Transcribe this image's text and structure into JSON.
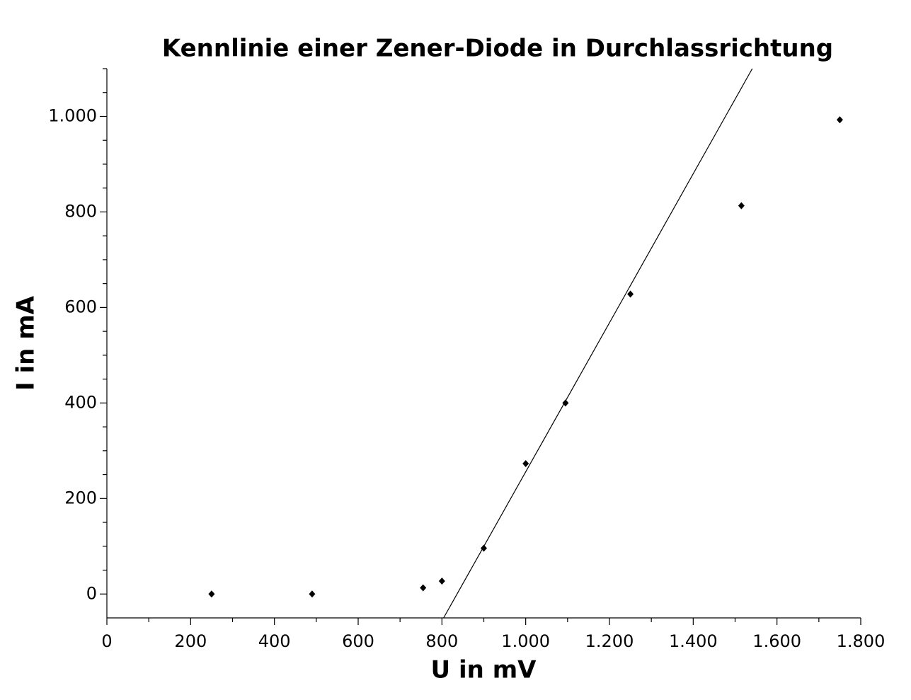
{
  "chart_data": {
    "type": "scatter",
    "title": "Kennlinie einer Zener-Diode in Durchlassrichtung",
    "xlabel": "U in mV",
    "ylabel": "I in mA",
    "xlim": [
      0,
      1800
    ],
    "ylim": [
      -50,
      1100
    ],
    "xticks": [
      0,
      200,
      400,
      600,
      800,
      {
        "value": 1000,
        "label": "1.000"
      },
      {
        "value": 1200,
        "label": "1.200"
      },
      {
        "value": 1400,
        "label": "1.400"
      },
      {
        "value": 1600,
        "label": "1.600"
      },
      {
        "value": 1800,
        "label": "1.800"
      }
    ],
    "yticks": [
      0,
      200,
      400,
      600,
      800,
      {
        "value": 1000,
        "label": "1.000"
      }
    ],
    "xminorticks": [
      100,
      300,
      500,
      700,
      900,
      1100,
      1300,
      1500,
      1700
    ],
    "yminorticks": [
      50,
      100,
      150,
      250,
      300,
      350,
      450,
      500,
      550,
      650,
      700,
      750,
      850,
      900,
      950,
      1050,
      1100
    ],
    "series": [
      {
        "type": "scatter",
        "color": "#000000",
        "x": [
          250,
          490,
          755,
          800,
          900,
          1000,
          1095,
          1250,
          1515,
          1750
        ],
        "values": [
          0,
          0,
          13,
          27,
          96,
          273,
          400,
          628,
          813,
          993
        ]
      },
      {
        "type": "line",
        "color": "#000000",
        "x": [
          804,
          1541
        ],
        "values": [
          -50,
          1100
        ]
      }
    ]
  }
}
